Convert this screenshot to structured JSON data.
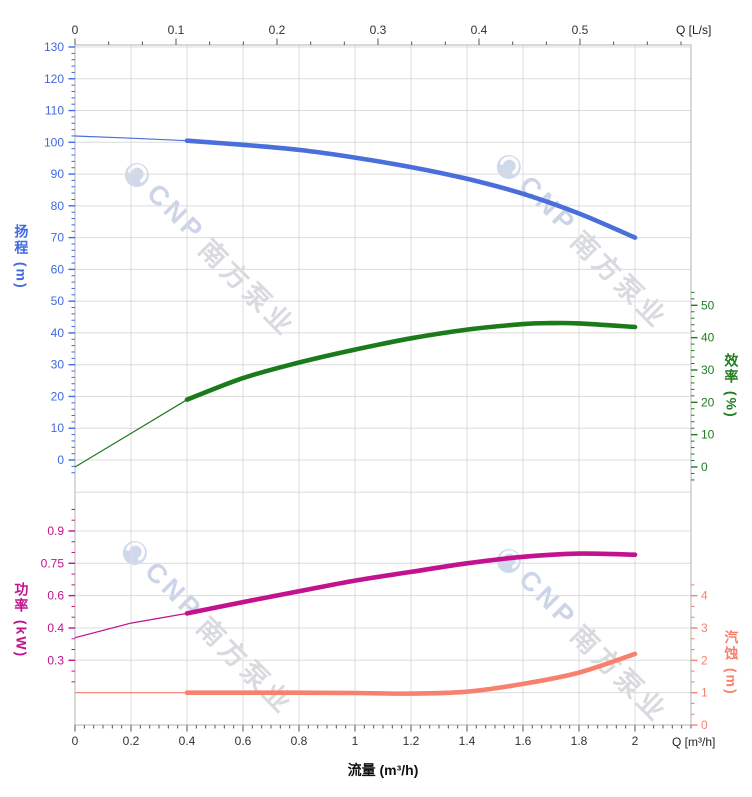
{
  "page": {
    "background": "#ffffff"
  },
  "chart": {
    "watermark": {
      "latin": "CNP",
      "cjk": "南方泵业"
    },
    "axes": {
      "top": {
        "label": "Q [L/s]",
        "color": "#333333",
        "ticks": [
          [
            0,
            "0"
          ],
          [
            0.1,
            "0.1"
          ],
          [
            0.2,
            "0.2"
          ],
          [
            0.3,
            "0.3"
          ],
          [
            0.4,
            "0.4"
          ],
          [
            0.5,
            "0.5"
          ]
        ]
      },
      "bottom": {
        "label": "Q [m³/h]",
        "title": "流量 (m³/h)",
        "color": "#333333",
        "ticks": [
          [
            0,
            "0"
          ],
          [
            0.2,
            "0.2"
          ],
          [
            0.4,
            "0.4"
          ],
          [
            0.6,
            "0.6"
          ],
          [
            0.8,
            "0.8"
          ],
          [
            1,
            "1"
          ],
          [
            1.2,
            "1.2"
          ],
          [
            1.4,
            "1.4"
          ],
          [
            1.6,
            "1.6"
          ],
          [
            1.8,
            "1.8"
          ],
          [
            2,
            "2"
          ]
        ]
      },
      "head": {
        "title": "扬程 (m)",
        "color": "#4169e1",
        "ticks": [
          [
            0,
            "0"
          ],
          [
            10,
            "10"
          ],
          [
            20,
            "20"
          ],
          [
            30,
            "30"
          ],
          [
            40,
            "40"
          ],
          [
            50,
            "50"
          ],
          [
            60,
            "60"
          ],
          [
            70,
            "70"
          ],
          [
            80,
            "80"
          ],
          [
            90,
            "90"
          ],
          [
            100,
            "100"
          ],
          [
            110,
            "110"
          ],
          [
            120,
            "120"
          ],
          [
            130,
            "130"
          ]
        ]
      },
      "efficiency": {
        "title": "效率 (%)",
        "color": "#1e7e1e",
        "ticks": [
          [
            0,
            "0"
          ],
          [
            10,
            "10"
          ],
          [
            20,
            "20"
          ],
          [
            30,
            "30"
          ],
          [
            40,
            "40"
          ],
          [
            50,
            "50"
          ]
        ]
      },
      "power": {
        "title": "功率 (kW)",
        "color": "#c2128e",
        "tick_labels_bottom_up": [
          "0.3",
          "0.4",
          "0.6",
          "0.75",
          "0.9"
        ]
      },
      "npsh": {
        "title": "汽蚀 (m)",
        "color": "#f8806f",
        "ticks": [
          [
            0,
            "0"
          ],
          [
            1,
            "1"
          ],
          [
            2,
            "2"
          ],
          [
            3,
            "3"
          ],
          [
            4,
            "4"
          ]
        ]
      }
    }
  },
  "chart_data": {
    "type": "line",
    "x_unit": "m³/h",
    "x_range": [
      0,
      2.2
    ],
    "top_x_unit": "L/s",
    "top_x_ticks": [
      0,
      0.1,
      0.2,
      0.3,
      0.4,
      0.5
    ],
    "grid": true,
    "series": [
      {
        "id": "head",
        "name": "扬程",
        "unit": "m",
        "axis": "head",
        "color": "#4a6fdb",
        "thick_from": 0.4,
        "axis_range": [
          0,
          130
        ],
        "x": [
          0,
          0.2,
          0.4,
          0.6,
          0.8,
          1,
          1.2,
          1.4,
          1.6,
          1.8,
          2
        ],
        "y": [
          102,
          101.3,
          100.5,
          99.2,
          97.6,
          95.2,
          92.2,
          88.5,
          83.8,
          77.6,
          70
        ]
      },
      {
        "id": "efficiency",
        "name": "效率",
        "unit": "%",
        "axis": "efficiency",
        "color": "#1b7b1b",
        "thick_from": 0.4,
        "axis_range": [
          0,
          50
        ],
        "x": [
          0,
          0.2,
          0.4,
          0.6,
          0.8,
          1,
          1.2,
          1.4,
          1.6,
          1.7,
          1.8,
          2
        ],
        "y": [
          0,
          10.4,
          20.8,
          27.5,
          32.3,
          36.3,
          39.8,
          42.5,
          44.2,
          44.5,
          44.4,
          43.3
        ]
      },
      {
        "id": "power",
        "name": "功率",
        "unit": "kW",
        "axis": "power",
        "color": "#c2128e",
        "thick_from": 0.4,
        "axis_tick_values": [
          0.3,
          0.4,
          0.6,
          0.75,
          0.9
        ],
        "x": [
          0,
          0.2,
          0.4,
          0.6,
          0.8,
          1,
          1.2,
          1.4,
          1.6,
          1.8,
          2
        ],
        "y": [
          0.37,
          0.43,
          0.49,
          0.56,
          0.62,
          0.67,
          0.71,
          0.75,
          0.78,
          0.795,
          0.79
        ]
      },
      {
        "id": "npsh",
        "name": "汽蚀",
        "unit": "m",
        "axis": "npsh",
        "color": "#f8806f",
        "thick_from": 0.4,
        "axis_range": [
          0,
          4
        ],
        "x": [
          0,
          0.4,
          0.8,
          1,
          1.2,
          1.4,
          1.6,
          1.8,
          2
        ],
        "y": [
          1.0,
          1.0,
          1.0,
          0.99,
          0.97,
          1.03,
          1.27,
          1.62,
          2.2
        ]
      }
    ]
  }
}
